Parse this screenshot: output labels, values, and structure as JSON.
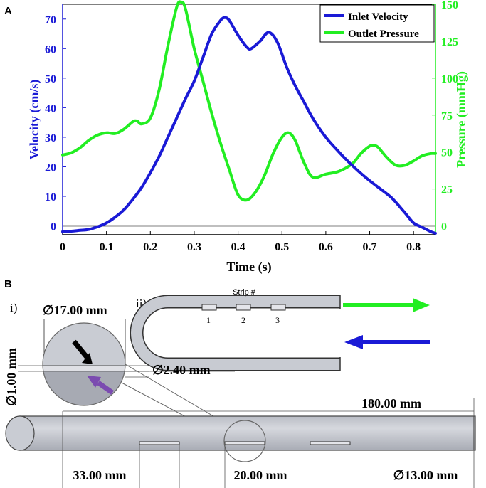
{
  "panel_a": {
    "label": "A",
    "chart_data": {
      "type": "line",
      "xlabel": "Time (s)",
      "ylabel_left": "Velocity (cm/s)",
      "ylabel_right": "Pressure (mmHg)",
      "xlim": [
        0,
        0.85
      ],
      "ylim_left": [
        -3,
        75
      ],
      "ylim_right": [
        -6,
        150
      ],
      "x_ticks": [
        "0",
        "0.1",
        "0.2",
        "0.3",
        "0.4",
        "0.5",
        "0.6",
        "0.7",
        "0.8"
      ],
      "x_tick_values": [
        0,
        0.1,
        0.2,
        0.3,
        0.4,
        0.5,
        0.6,
        0.7,
        0.8
      ],
      "y_left_ticks": [
        "0",
        "10",
        "20",
        "30",
        "40",
        "50",
        "60",
        "70"
      ],
      "y_left_tick_values": [
        0,
        10,
        20,
        30,
        40,
        50,
        60,
        70
      ],
      "y_right_ticks": [
        "0",
        "25",
        "50",
        "75",
        "100",
        "125",
        "150"
      ],
      "y_right_tick_values": [
        0,
        25,
        50,
        75,
        100,
        125,
        150
      ],
      "zero_line": 0,
      "legend_position": "top-right",
      "series": [
        {
          "name": "Inlet Velocity",
          "axis": "left",
          "color": "#1a1ad6",
          "x": [
            0,
            0.02,
            0.04,
            0.06,
            0.08,
            0.1,
            0.12,
            0.14,
            0.16,
            0.18,
            0.2,
            0.22,
            0.24,
            0.26,
            0.28,
            0.3,
            0.32,
            0.34,
            0.36,
            0.37,
            0.38,
            0.4,
            0.42,
            0.43,
            0.45,
            0.47,
            0.49,
            0.51,
            0.53,
            0.55,
            0.57,
            0.6,
            0.63,
            0.66,
            0.69,
            0.72,
            0.75,
            0.78,
            0.8,
            0.82,
            0.84,
            0.85
          ],
          "values": [
            -2,
            -1.8,
            -1.5,
            -1.2,
            -0.3,
            1,
            3,
            5.5,
            9,
            13,
            18,
            23.5,
            30,
            36.5,
            43,
            49,
            57,
            65,
            69.5,
            70.5,
            69.5,
            64.5,
            60.5,
            60,
            62.5,
            65.5,
            62,
            54,
            47.5,
            42,
            36.5,
            30,
            25,
            20.5,
            16.5,
            13,
            9.5,
            4.5,
            1,
            -0.5,
            -2,
            -2.5
          ]
        },
        {
          "name": "Outlet Pressure",
          "axis": "right",
          "color": "#22ee22",
          "x": [
            0,
            0.02,
            0.04,
            0.06,
            0.08,
            0.1,
            0.12,
            0.14,
            0.16,
            0.17,
            0.18,
            0.2,
            0.22,
            0.24,
            0.26,
            0.27,
            0.28,
            0.3,
            0.32,
            0.34,
            0.36,
            0.38,
            0.4,
            0.42,
            0.44,
            0.46,
            0.48,
            0.5,
            0.515,
            0.53,
            0.55,
            0.57,
            0.6,
            0.63,
            0.66,
            0.68,
            0.7,
            0.71,
            0.72,
            0.74,
            0.76,
            0.78,
            0.8,
            0.82,
            0.84,
            0.85
          ],
          "values": [
            48,
            49.5,
            53,
            58,
            61.5,
            63,
            62.5,
            65.5,
            70.5,
            71,
            69,
            73,
            92,
            122,
            148,
            151.5,
            147,
            120,
            98,
            76,
            56,
            38,
            21,
            17.5,
            23,
            34,
            49,
            60,
            63,
            58,
            43,
            33,
            35,
            37,
            42,
            49,
            54,
            54.5,
            53,
            46,
            41,
            41,
            44,
            47.5,
            49,
            49
          ]
        }
      ]
    }
  },
  "panel_b": {
    "label": "B",
    "sub_i": "i)",
    "sub_ii": "ii)",
    "strip_title": "Strip #",
    "strip_numbers": [
      "1",
      "2",
      "3"
    ],
    "dim_diameter_17": "∅17.00 mm",
    "dim_diameter_2_4": "∅2.40 mm",
    "dim_diameter_1": "∅1.00 mm",
    "dim_length_180": "180.00 mm",
    "dim_33": "33.00 mm",
    "dim_20": "20.00 mm",
    "dim_diameter_13": "∅13.00 mm",
    "colors": {
      "tube_fill": "#c8cbd2",
      "tube_stroke": "#333333",
      "black_arrow": "#000000",
      "purple_arrow": "#7b4bb0",
      "green_arrow": "#22ee22",
      "blue_arrow": "#1a1ad6"
    }
  }
}
